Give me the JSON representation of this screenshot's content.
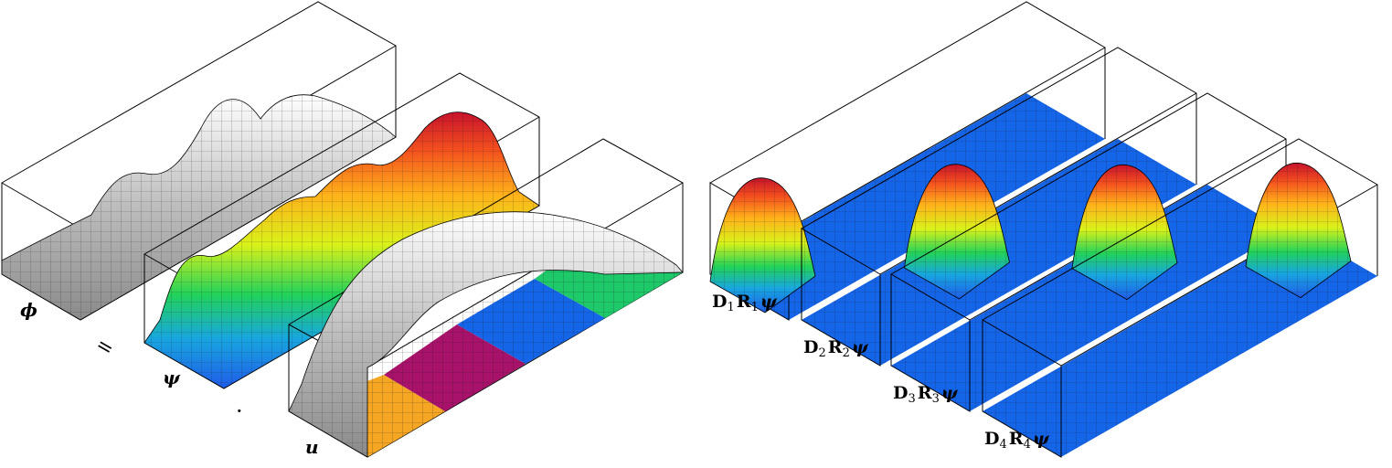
{
  "left_panel": {
    "phi_label": "ϕ",
    "equals_sign": "=",
    "psi_label": "ψ",
    "dot_sign": "·",
    "u_label": "u"
  },
  "right_panel": {
    "labels": [
      {
        "D": "D",
        "D_sub": "1",
        "R": "R",
        "R_sub": "1",
        "psi": "ψ"
      },
      {
        "D": "D",
        "D_sub": "2",
        "R": "R",
        "R_sub": "2",
        "psi": "ψ"
      },
      {
        "D": "D",
        "D_sub": "3",
        "R": "R",
        "R_sub": "3",
        "psi": "ψ"
      },
      {
        "D": "D",
        "D_sub": "4",
        "R": "R",
        "R_sub": "4",
        "psi": "ψ"
      }
    ]
  },
  "colors": {
    "partition_blue": "#1565e8",
    "partition_orange": "#f5a623",
    "partition_magenta": "#a8126a",
    "partition_green": "#1ec96a",
    "surface_gray": "#c8c8c8",
    "box_line": "#000000"
  }
}
